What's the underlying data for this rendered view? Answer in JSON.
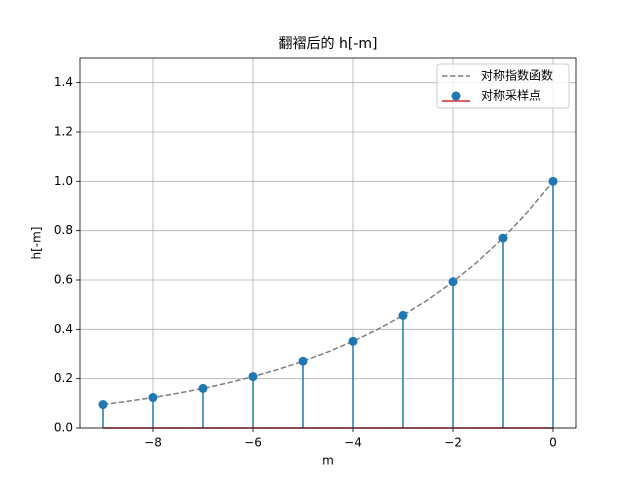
{
  "chart_data": {
    "type": "stem",
    "title": "翻褶后的 h[-m]",
    "xlabel": "m",
    "ylabel": "h[-m]",
    "xlim": [
      -9.46,
      0.46
    ],
    "ylim": [
      0,
      1.5
    ],
    "xticks": [
      {
        "value": -8,
        "label": "−8"
      },
      {
        "value": -6,
        "label": "−6"
      },
      {
        "value": -4,
        "label": "−4"
      },
      {
        "value": -2,
        "label": "−2"
      },
      0
    ],
    "yticks": [
      {
        "value": 0,
        "label": "0.0"
      },
      {
        "value": 0.2,
        "label": "0.2"
      },
      {
        "value": 0.4,
        "label": "0.4"
      },
      {
        "value": 0.6,
        "label": "0.6"
      },
      {
        "value": 0.8,
        "label": "0.8"
      },
      {
        "value": 1.0,
        "label": "1.0"
      },
      {
        "value": 1.2,
        "label": "1.2"
      },
      {
        "value": 1.4,
        "label": "1.4"
      }
    ],
    "grid": true,
    "legend": "upper right",
    "baseline_color": "#d62728",
    "series": [
      {
        "name": "对称指数函数",
        "color": "#7f7f7f",
        "style": "dashed",
        "x": [
          -9,
          -8.5,
          -8,
          -7.5,
          -7,
          -6.5,
          -6,
          -5.5,
          -5,
          -4.5,
          -4,
          -3.5,
          -3,
          -2.5,
          -2,
          -1.5,
          -1,
          -0.5,
          0
        ],
        "values": [
          0.0952,
          0.1085,
          0.1236,
          0.1408,
          0.1605,
          0.1829,
          0.2084,
          0.2375,
          0.2707,
          0.3085,
          0.3515,
          0.4006,
          0.4565,
          0.5203,
          0.5929,
          0.6757,
          0.77,
          0.8775,
          1.0
        ]
      },
      {
        "name": "对称采样点",
        "color": "#1f77b4",
        "style": "stem",
        "x": [
          -9,
          -8,
          -7,
          -6,
          -5,
          -4,
          -3,
          -2,
          -1,
          0
        ],
        "values": [
          0.0952,
          0.1236,
          0.1605,
          0.2084,
          0.2707,
          0.3515,
          0.4565,
          0.5929,
          0.77,
          1.0
        ]
      }
    ]
  }
}
